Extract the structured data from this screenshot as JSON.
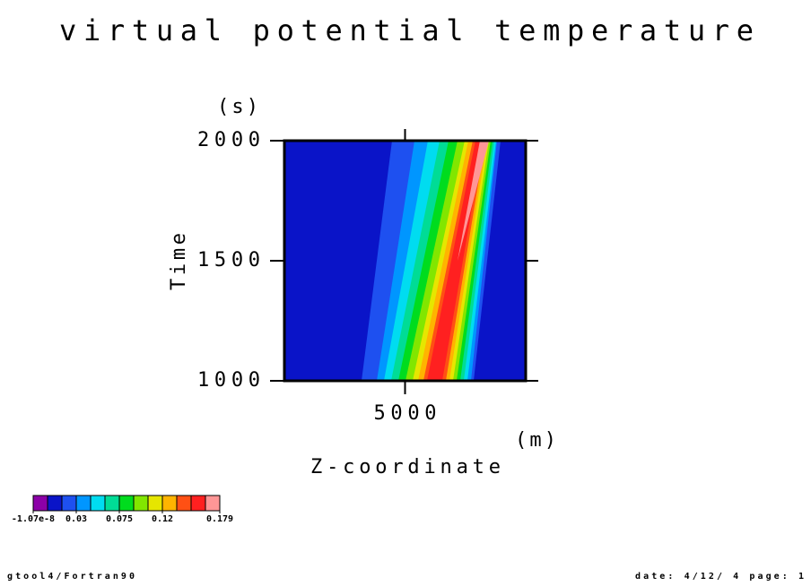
{
  "chart_data": {
    "type": "contour",
    "title": "virtual potential temperature",
    "xlabel": "Z-coordinate",
    "xunit": "(m)",
    "ylabel": "Time",
    "yunit": "(s)",
    "xlim": [
      0,
      10000
    ],
    "xticks": [
      5000
    ],
    "ylim": [
      1000,
      2000
    ],
    "yticks": [
      1000,
      1500,
      2000
    ],
    "background_level": 1,
    "colors": [
      "#8c00a8",
      "#0a14c8",
      "#1e50f0",
      "#0096ff",
      "#00dcf0",
      "#00dc96",
      "#00dc1e",
      "#82e600",
      "#e6e600",
      "#ffb400",
      "#ff5014",
      "#ff2020",
      "#ff9696"
    ],
    "levels": [
      -1.07e-08,
      0.01,
      0.02,
      0.03,
      0.045,
      0.06,
      0.075,
      0.09,
      0.105,
      0.12,
      0.135,
      0.15,
      0.165,
      0.179
    ],
    "colorbar_ticks": [
      {
        "value": -1.07e-08,
        "label": "-1.07e-8"
      },
      {
        "value": 0.03,
        "label": "0.03"
      },
      {
        "value": 0.075,
        "label": "0.075"
      },
      {
        "value": 0.12,
        "label": "0.12"
      },
      {
        "value": 0.179,
        "label": "0.179"
      }
    ],
    "regions": [
      {
        "t": [
          1000,
          2000
        ],
        "left": [
          3197,
          4460
        ],
        "right": [
          7843,
          8958
        ]
      },
      {
        "t": [
          1000,
          2000
        ],
        "left": [
          3829,
          5390
        ],
        "right": [
          7732,
          8809
        ]
      },
      {
        "t": [
          1000,
          2000
        ],
        "left": [
          4126,
          5947
        ],
        "right": [
          7583,
          8772
        ]
      },
      {
        "t": [
          1000,
          2000
        ],
        "left": [
          4423,
          6430
        ],
        "right": [
          7434,
          8698
        ]
      },
      {
        "t": [
          1000,
          2000
        ],
        "left": [
          4721,
          6802
        ],
        "right": [
          7285,
          8624
        ]
      },
      {
        "t": [
          1000,
          2000
        ],
        "left": [
          5018,
          7174
        ],
        "right": [
          7137,
          8549
        ]
      },
      {
        "t": [
          1000,
          2000
        ],
        "left": [
          5315,
          7471
        ],
        "right": [
          6988,
          8475
        ]
      },
      {
        "t": [
          1000,
          2000
        ],
        "left": [
          5538,
          7620
        ],
        "right": [
          6839,
          8400
        ]
      },
      {
        "t": [
          1000,
          2000
        ],
        "left": [
          5761,
          7806
        ],
        "right": [
          6691,
          8326
        ]
      },
      {
        "t": [
          1000,
          2000
        ],
        "left": [
          5910,
          7917
        ],
        "right": [
          6542,
          8252
        ]
      },
      {
        "t": [
          1500,
          2000
        ],
        "left": [
          7174,
          8103
        ],
        "right": [
          7174,
          8475
        ]
      }
    ]
  },
  "footer": {
    "left": "gtool4/Fortran90",
    "right": "date: 4/12/ 4 page: 1"
  }
}
